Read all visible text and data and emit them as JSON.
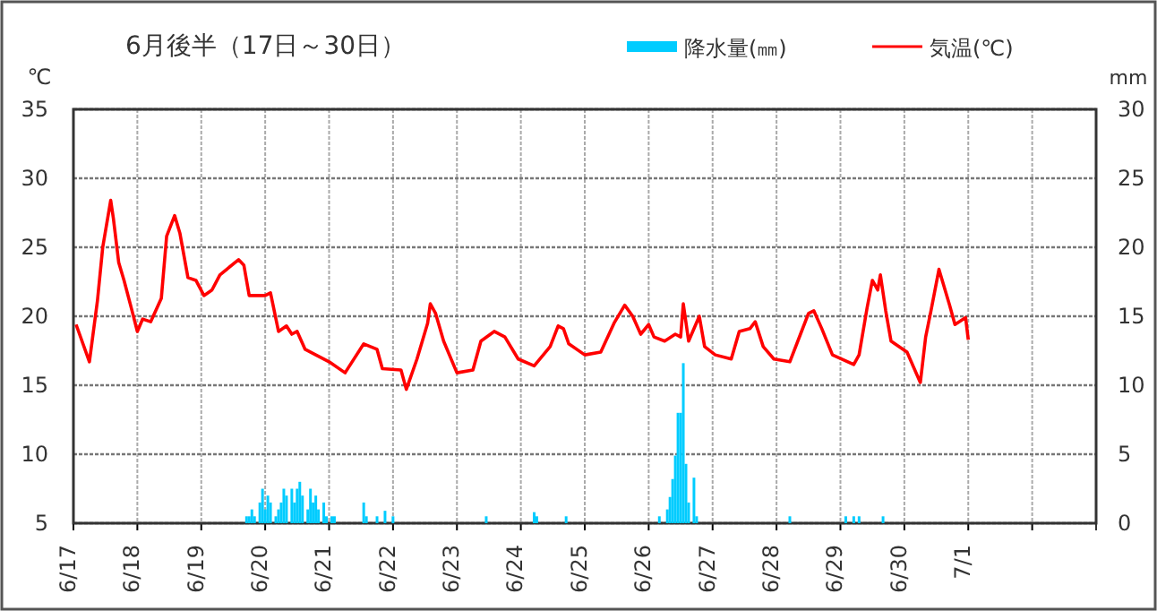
{
  "chart_data": {
    "type": "line",
    "title": "6月後半（17日～30日）",
    "ylabel": "℃",
    "y2label": "mm",
    "xlim": [
      "--06-17",
      "--07-03"
    ],
    "xticks": [
      {
        "value": "--06-17",
        "label": "6/17"
      },
      {
        "value": "--06-18",
        "label": "6/18"
      },
      {
        "value": "--06-19",
        "label": "6/19"
      },
      {
        "value": "--06-20",
        "label": "6/20"
      },
      {
        "value": "--06-21",
        "label": "6/21"
      },
      {
        "value": "--06-22",
        "label": "6/22"
      },
      {
        "value": "--06-23",
        "label": "6/23"
      },
      {
        "value": "--06-24",
        "label": "6/24"
      },
      {
        "value": "--06-25",
        "label": "6/25"
      },
      {
        "value": "--06-26",
        "label": "6/26"
      },
      {
        "value": "--06-27",
        "label": "6/27"
      },
      {
        "value": "--06-28",
        "label": "6/28"
      },
      {
        "value": "--06-29",
        "label": "6/29"
      },
      {
        "value": "--06-30",
        "label": "6/30"
      },
      {
        "value": "--07-01",
        "label": "7/1"
      },
      {
        "value": "--07-02",
        "label": null
      }
    ],
    "ylim": [
      5,
      35
    ],
    "yticks": [
      5,
      10,
      15,
      20,
      25,
      30,
      35
    ],
    "y2lim": [
      0,
      30
    ],
    "y2ticks": [
      0,
      5,
      10,
      15,
      20,
      25,
      30
    ],
    "grid": true,
    "legend": "top right",
    "series": [
      {
        "name": "降水量(㎜)",
        "type": "bar",
        "axis": "y2",
        "color": "#00ccff",
        "x": [
          "--06-19T17:00",
          "--06-19T18:00",
          "--06-19T19:00",
          "--06-19T20:00",
          "--06-19T22:00",
          "--06-19T23:00",
          "--06-20T00:00",
          "--06-20T01:00",
          "--06-20T02:00",
          "--06-20T04:00",
          "--06-20T05:00",
          "--06-20T06:00",
          "--06-20T07:00",
          "--06-20T08:00",
          "--06-20T10:00",
          "--06-20T11:00",
          "--06-20T12:00",
          "--06-20T13:00",
          "--06-20T14:00",
          "--06-20T16:00",
          "--06-20T17:00",
          "--06-20T18:00",
          "--06-20T19:00",
          "--06-20T20:00",
          "--06-20T22:00",
          "--06-20T23:00",
          "--06-21T01:00",
          "--06-21T02:00",
          "--06-21T13:00",
          "--06-21T14:00",
          "--06-21T18:00",
          "--06-21T21:00",
          "--06-22T00:00",
          "--06-23T11:00",
          "--06-24T05:00",
          "--06-24T06:00",
          "--06-24T17:00",
          "--06-26T04:00",
          "--06-26T07:00",
          "--06-26T08:00",
          "--06-26T09:00",
          "--06-26T10:00",
          "--06-26T11:00",
          "--06-26T12:00",
          "--06-26T13:00",
          "--06-26T14:00",
          "--06-26T15:00",
          "--06-26T17:00",
          "--06-26T18:00",
          "--06-28T05:00",
          "--06-29T02:00",
          "--06-29T05:00",
          "--06-29T07:00",
          "--06-29T16:00"
        ],
        "values": [
          0.5,
          0.5,
          1.0,
          0.5,
          1.5,
          2.5,
          1.0,
          2.0,
          1.5,
          0.5,
          1.0,
          1.5,
          2.5,
          2.0,
          2.5,
          1.5,
          2.5,
          3.0,
          2.0,
          1.0,
          2.5,
          1.5,
          2.0,
          1.0,
          1.5,
          0.5,
          0.5,
          0.5,
          1.5,
          0.5,
          0.5,
          0.9,
          0.5,
          0.5,
          0.8,
          0.5,
          0.5,
          0.5,
          1.0,
          1.9,
          3.2,
          4.9,
          8.0,
          8.0,
          11.6,
          4.3,
          1.5,
          3.3,
          0.5,
          0.5,
          0.5,
          0.5,
          0.5,
          0.5
        ]
      },
      {
        "name": "気温(℃)",
        "color": "#ff0000",
        "x": [
          "--06-17T01:00",
          "--06-17T06:00",
          "--06-17T09:00",
          "--06-17T11:00",
          "--06-17T14:00",
          "--06-17T15:00",
          "--06-17T17:00",
          "--06-17T19:00",
          "--06-17T22:00",
          "--06-18T00:00",
          "--06-18T02:00",
          "--06-18T05:00",
          "--06-18T09:00",
          "--06-18T11:00",
          "--06-18T14:00",
          "--06-18T16:00",
          "--06-18T19:00",
          "--06-18T22:00",
          "--06-19T01:00",
          "--06-19T04:00",
          "--06-19T07:00",
          "--06-19T14:00",
          "--06-19T16:00",
          "--06-19T18:00",
          "--06-20T00:00",
          "--06-20T02:00",
          "--06-20T05:00",
          "--06-20T08:00",
          "--06-20T10:00",
          "--06-20T12:00",
          "--06-20T15:00",
          "--06-20T19:00",
          "--06-21T00:00",
          "--06-21T06:00",
          "--06-21T13:00",
          "--06-21T18:00",
          "--06-21T20:00",
          "--06-22T03:00",
          "--06-22T05:00",
          "--06-22T09:00",
          "--06-22T13:00",
          "--06-22T14:00",
          "--06-22T16:00",
          "--06-22T19:00",
          "--06-23T00:00",
          "--06-23T06:00",
          "--06-23T09:00",
          "--06-23T14:00",
          "--06-23T18:00",
          "--06-23T23:00",
          "--06-24T05:00",
          "--06-24T11:00",
          "--06-24T14:00",
          "--06-24T16:00",
          "--06-24T18:00",
          "--06-25T00:00",
          "--06-25T06:00",
          "--06-25T11:00",
          "--06-25T15:00",
          "--06-25T18:00",
          "--06-25T21:00",
          "--06-26T00:00",
          "--06-26T02:00",
          "--06-26T06:00",
          "--06-26T10:00",
          "--06-26T12:00",
          "--06-26T13:00",
          "--06-26T15:00",
          "--06-26T19:00",
          "--06-26T21:00",
          "--06-27T01:00",
          "--06-27T07:00",
          "--06-27T10:00",
          "--06-27T14:00",
          "--06-27T16:00",
          "--06-27T19:00",
          "--06-27T23:00",
          "--06-28T05:00",
          "--06-28T09:00",
          "--06-28T12:00",
          "--06-28T14:00",
          "--06-28T17:00",
          "--06-28T21:00",
          "--06-29T05:00",
          "--06-29T07:00",
          "--06-29T10:00",
          "--06-29T12:00",
          "--06-29T14:00",
          "--06-29T15:00",
          "--06-29T17:00",
          "--06-29T19:00",
          "--06-30T01:00",
          "--06-30T06:00",
          "--06-30T08:00",
          "--06-30T10:00",
          "--06-30T13:00",
          "--06-30T17:00",
          "--06-30T19:00",
          "--06-30T23:00",
          "--07-01T00:00"
        ],
        "values": [
          19.4,
          16.7,
          21.1,
          25.0,
          28.4,
          27.1,
          23.9,
          22.6,
          20.4,
          18.9,
          19.8,
          19.6,
          21.3,
          25.8,
          27.3,
          26.0,
          22.8,
          22.6,
          21.5,
          21.9,
          23.0,
          24.1,
          23.7,
          21.5,
          21.5,
          21.7,
          18.9,
          19.3,
          18.7,
          18.9,
          17.6,
          17.2,
          16.7,
          15.9,
          18.0,
          17.6,
          16.2,
          16.1,
          14.7,
          16.9,
          19.5,
          20.9,
          20.2,
          18.2,
          15.9,
          16.1,
          18.2,
          18.9,
          18.5,
          16.9,
          16.4,
          17.8,
          19.3,
          19.1,
          18.0,
          17.2,
          17.4,
          19.5,
          20.8,
          20.0,
          18.7,
          19.4,
          18.5,
          18.2,
          18.7,
          18.5,
          20.9,
          18.2,
          20.0,
          17.8,
          17.2,
          16.9,
          18.9,
          19.1,
          19.6,
          17.8,
          16.9,
          16.7,
          18.7,
          20.2,
          20.4,
          19.1,
          17.2,
          16.5,
          17.2,
          20.6,
          22.6,
          21.9,
          23.0,
          20.4,
          18.2,
          17.4,
          15.2,
          18.5,
          20.4,
          23.4,
          20.8,
          19.4,
          19.9,
          18.3
        ]
      }
    ]
  }
}
